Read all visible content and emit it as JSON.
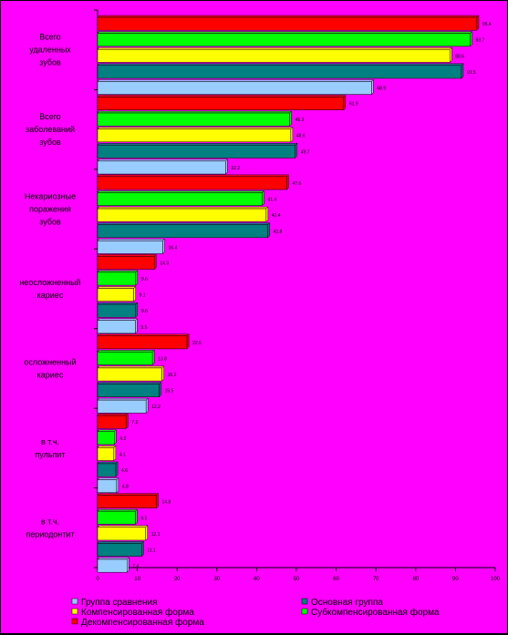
{
  "chart_data": {
    "type": "bar",
    "orientation": "horizontal",
    "categories": [
      [
        "Всего",
        "удаленных",
        "зубов"
      ],
      [
        "Всего",
        "заболеваний",
        "зубов"
      ],
      [
        "Некариозные",
        "поражения",
        "зубов"
      ],
      [
        "неосложненный",
        "кариес"
      ],
      [
        "осложненный",
        "кариес"
      ],
      [
        "в т.ч.",
        "пульпит"
      ],
      [
        "в т.ч.",
        "периодонтит"
      ]
    ],
    "series": [
      {
        "name": "Группа сравнения",
        "color": "#99ccff",
        "values": [
          68.9,
          32.2,
          16.4,
          9.5,
          12.2,
          4.8,
          7.4
        ]
      },
      {
        "name": "Основная группа",
        "color": "#008080",
        "values": [
          91.5,
          49.7,
          42.8,
          9.6,
          15.5,
          4.6,
          11.1
        ]
      },
      {
        "name": "Компенсированная форма",
        "color": "#ffff00",
        "values": [
          88.6,
          48.6,
          42.4,
          9.1,
          16.2,
          4.1,
          12.1
        ]
      },
      {
        "name": "Субкомпенсированная форма",
        "color": "#00ff00",
        "values": [
          93.7,
          48.3,
          41.4,
          9.6,
          13.8,
          4.2,
          9.5
        ]
      },
      {
        "name": "Декомпенсированная форма",
        "color": "#ff0000",
        "values": [
          95.4,
          61.9,
          47.6,
          14.3,
          22.5,
          7.2,
          14.8
        ]
      }
    ],
    "value_labels": [
      [
        "68.9",
        "32.2",
        "16.4",
        "9.5",
        "12.2",
        "4.8",
        "7.4"
      ],
      [
        "91.5",
        "49.7",
        "42.8",
        "9.6",
        "15.5",
        "4.6",
        "11.1"
      ],
      [
        "88.6",
        "48.6",
        "42.4",
        "9.1",
        "16.2",
        "4.1",
        "12.1"
      ],
      [
        "93.7",
        "48.3",
        "41.4",
        "9.6",
        "13.8",
        "4.2",
        "9.5"
      ],
      [
        "95.4",
        "61.9",
        "47.6",
        "14.3",
        "22.5",
        "7.2",
        "14.8"
      ]
    ],
    "xticks": [
      "0",
      "10",
      "20",
      "30",
      "40",
      "50",
      "60",
      "70",
      "80",
      "90",
      "100"
    ],
    "xlim": [
      0,
      100
    ],
    "legend_position": "bottom",
    "grid": false,
    "background": "#ff00ff"
  }
}
